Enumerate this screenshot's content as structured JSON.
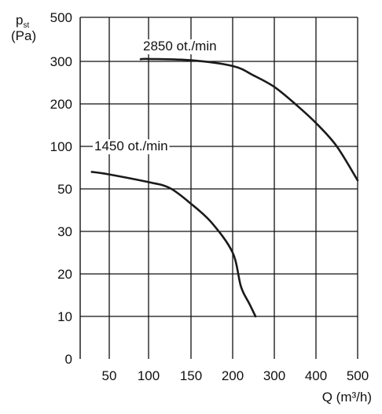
{
  "chart_data": {
    "type": "line",
    "ylabel": "p",
    "ylabel_sub": "st",
    "ylabel_unit": "(Pa)",
    "xlabel": "Q (m³/h)",
    "x_ticks": [
      "50",
      "100",
      "150",
      "200",
      "300",
      "400",
      "500"
    ],
    "y_ticks": [
      "500",
      "300",
      "200",
      "100",
      "50",
      "30",
      "20",
      "10",
      "0"
    ],
    "grid": true,
    "series": [
      {
        "name": "2850 ot./min",
        "color": "#1a1a1a",
        "points": [
          {
            "x": 90,
            "y": 310
          },
          {
            "x": 100,
            "y": 311
          },
          {
            "x": 150,
            "y": 305
          },
          {
            "x": 200,
            "y": 289
          },
          {
            "x": 250,
            "y": 267
          },
          {
            "x": 300,
            "y": 240
          },
          {
            "x": 350,
            "y": 200
          },
          {
            "x": 400,
            "y": 155
          },
          {
            "x": 450,
            "y": 100
          },
          {
            "x": 500,
            "y": 60
          }
        ]
      },
      {
        "name": "1450 ot./min",
        "color": "#1a1a1a",
        "points": [
          {
            "x": 20,
            "y": 70
          },
          {
            "x": 50,
            "y": 67
          },
          {
            "x": 100,
            "y": 58
          },
          {
            "x": 125,
            "y": 51
          },
          {
            "x": 150,
            "y": 43
          },
          {
            "x": 175,
            "y": 34
          },
          {
            "x": 200,
            "y": 25
          },
          {
            "x": 220,
            "y": 17
          },
          {
            "x": 240,
            "y": 13
          },
          {
            "x": 255,
            "y": 10
          }
        ]
      }
    ]
  }
}
